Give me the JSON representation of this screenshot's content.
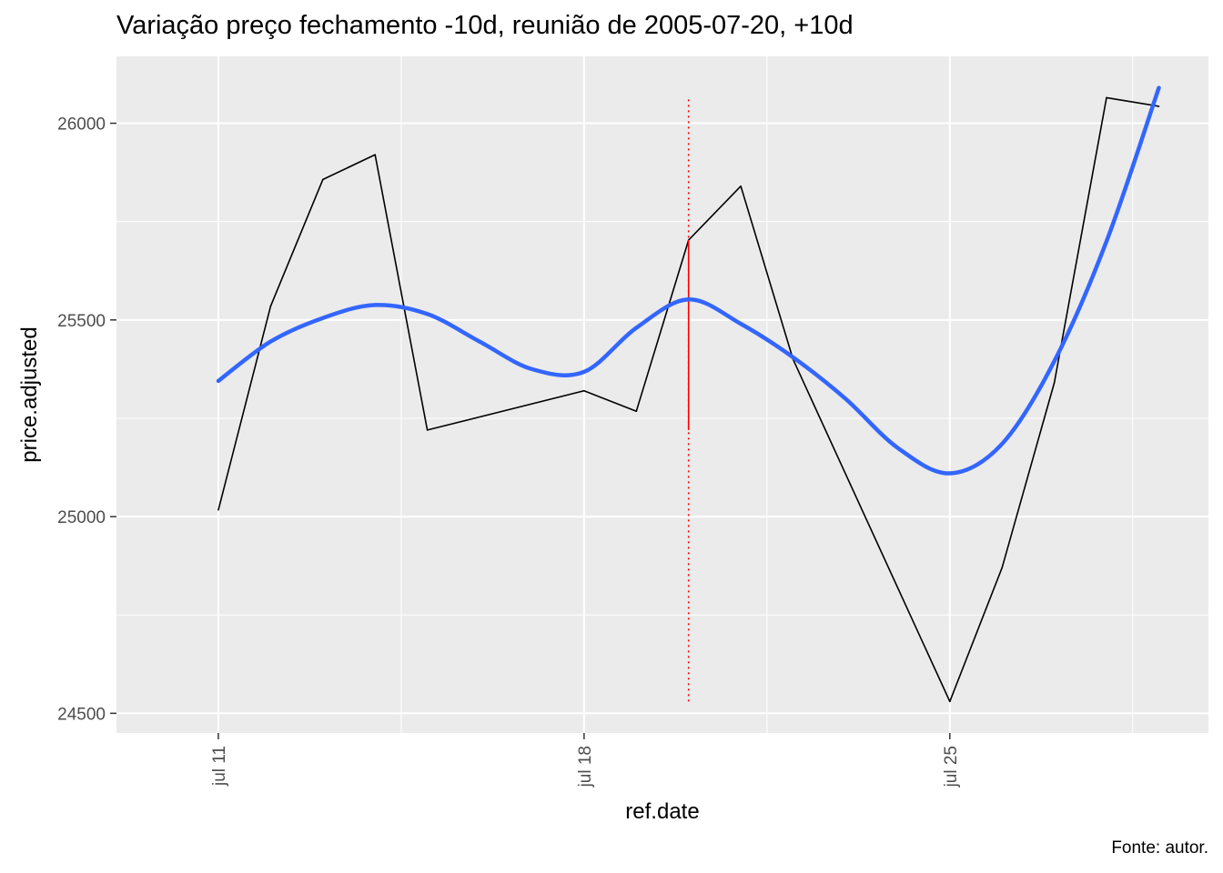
{
  "chart_data": {
    "type": "line",
    "title": "Variação preço fechamento -10d, reunião de 2005-07-20, +10d",
    "caption": "Fonte: autor.",
    "xlabel": "ref.date",
    "ylabel": "price.adjusted",
    "xlim": [
      "2005-07-10",
      "2005-07-29"
    ],
    "ylim": [
      24450,
      26170
    ],
    "x_ticks": [
      {
        "date": "2005-07-11",
        "label": "jul 11"
      },
      {
        "date": "2005-07-18",
        "label": "jul 18"
      },
      {
        "date": "2005-07-25",
        "label": "jul 25"
      }
    ],
    "y_ticks": [
      {
        "value": 24500,
        "label": "24500"
      },
      {
        "value": 25000,
        "label": "25000"
      },
      {
        "value": 25500,
        "label": "25500"
      },
      {
        "value": 26000,
        "label": "26000"
      }
    ],
    "grid": true,
    "background": "#ebebeb",
    "series": [
      {
        "color": "#000000",
        "points": [
          [
            "2005-07-11",
            25017
          ],
          [
            "2005-07-12",
            25535
          ],
          [
            "2005-07-13",
            25857
          ],
          [
            "2005-07-14",
            25920
          ],
          [
            "2005-07-15",
            25220
          ],
          [
            "2005-07-18",
            25320
          ],
          [
            "2005-07-19",
            25268
          ],
          [
            "2005-07-20",
            25703
          ],
          [
            "2005-07-21",
            25840
          ],
          [
            "2005-07-22",
            25400
          ],
          [
            "2005-07-25",
            24530
          ],
          [
            "2005-07-26",
            24870
          ],
          [
            "2005-07-27",
            25340
          ],
          [
            "2005-07-28",
            26065
          ],
          [
            "2005-07-29",
            26043
          ]
        ]
      }
    ],
    "smooth": {
      "color": "#3366ff",
      "points": [
        [
          "2005-07-11",
          25345
        ],
        [
          "2005-07-12",
          25445
        ],
        [
          "2005-07-13",
          25505
        ],
        [
          "2005-07-14",
          25538
        ],
        [
          "2005-07-15",
          25515
        ],
        [
          "2005-07-16",
          25445
        ],
        [
          "2005-07-17",
          25375
        ],
        [
          "2005-07-18",
          25368
        ],
        [
          "2005-07-19",
          25480
        ],
        [
          "2005-07-20",
          25552
        ],
        [
          "2005-07-21",
          25490
        ],
        [
          "2005-07-22",
          25405
        ],
        [
          "2005-07-23",
          25300
        ],
        [
          "2005-07-24",
          25175
        ],
        [
          "2005-07-25",
          25110
        ],
        [
          "2005-07-26",
          25185
        ],
        [
          "2005-07-27",
          25395
        ],
        [
          "2005-07-28",
          25700
        ],
        [
          "2005-07-29",
          26090
        ]
      ]
    },
    "reference_line": {
      "date": "2005-07-20",
      "color": "#ff0000",
      "y_range": [
        24530,
        26065
      ],
      "solid_y_range": [
        25220,
        25703
      ]
    }
  }
}
